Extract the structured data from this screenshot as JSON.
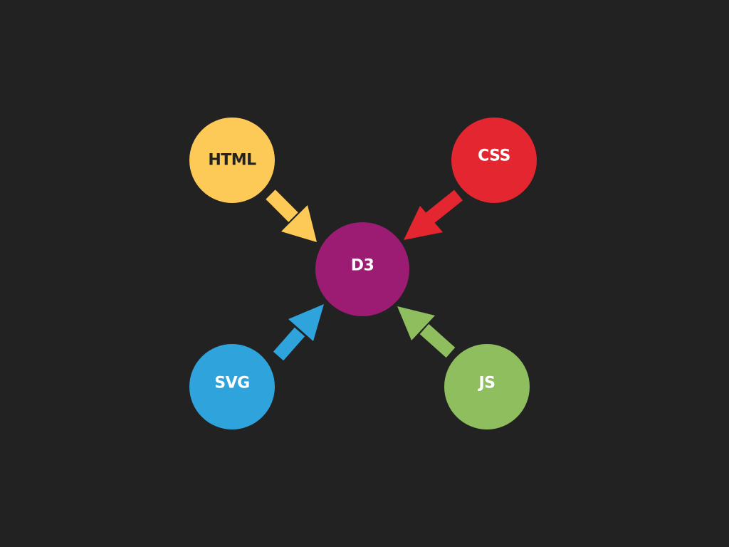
{
  "diagram": {
    "background": "#222222",
    "center": {
      "id": "d3",
      "label": "D3",
      "color": "#9C1C74",
      "text_color": "#FFFFFF"
    },
    "sources": [
      {
        "id": "html",
        "label": "HTML",
        "color": "#FECA57",
        "text_color": "#222222",
        "arrow_color": "#FECA57"
      },
      {
        "id": "css",
        "label": "CSS",
        "color": "#E3262F",
        "text_color": "#FFFFFF",
        "arrow_color": "#E3262F"
      },
      {
        "id": "svg",
        "label": "SVG",
        "color": "#2FA3DB",
        "text_color": "#FFFFFF",
        "arrow_color": "#2FA3DB"
      },
      {
        "id": "js",
        "label": "JS",
        "color": "#8FBE5F",
        "text_color": "#FFFFFF",
        "arrow_color": "#8FBE5F"
      }
    ],
    "edges": [
      {
        "from": "html",
        "to": "d3"
      },
      {
        "from": "css",
        "to": "d3"
      },
      {
        "from": "svg",
        "to": "d3"
      },
      {
        "from": "js",
        "to": "d3"
      }
    ]
  }
}
